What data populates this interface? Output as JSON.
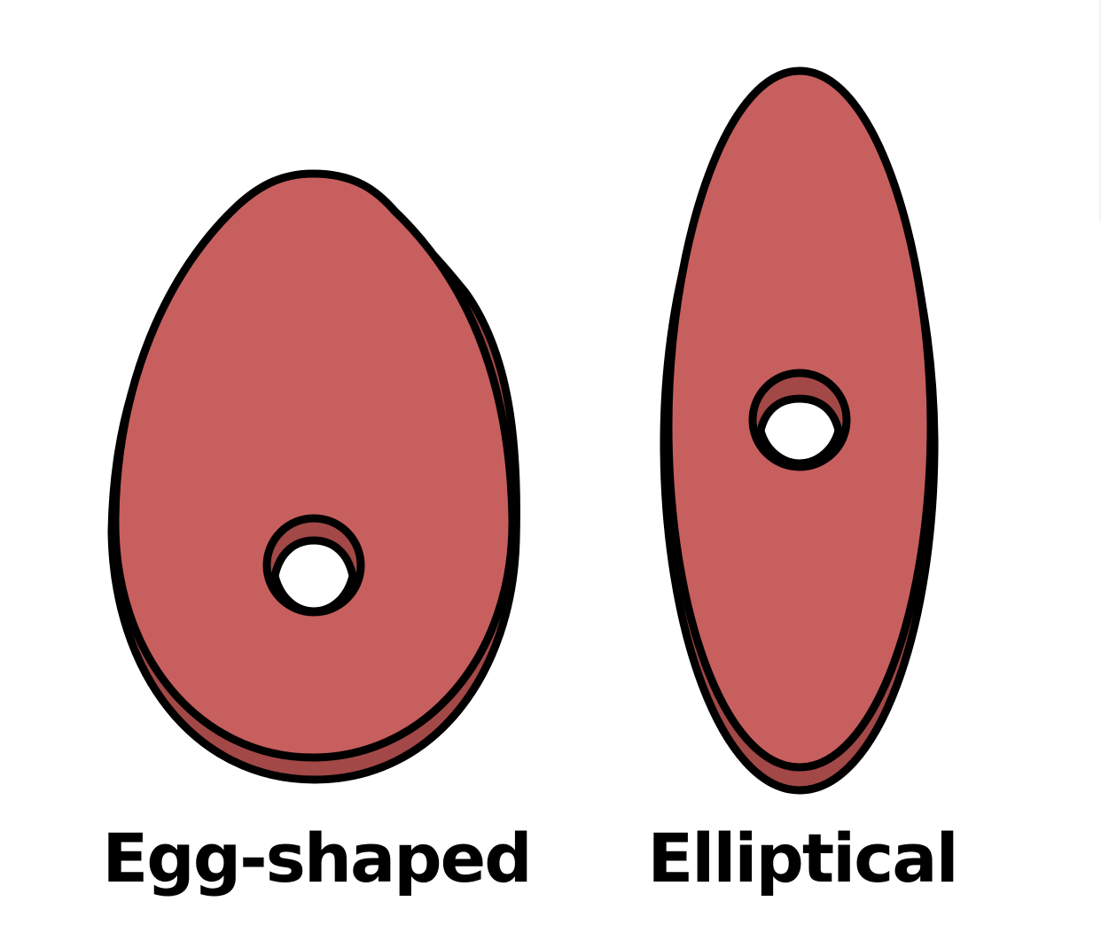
{
  "colors": {
    "fill": "#c75f5e",
    "shadow": "#a24847",
    "outline": "#000000",
    "hole": "#ffffff",
    "background": "#ffffff"
  },
  "shapes": [
    {
      "id": "egg",
      "label": "Egg-shaped",
      "icon": "egg-shaped-bead-icon"
    },
    {
      "id": "ellipse",
      "label": "Elliptical",
      "icon": "elliptical-bead-icon"
    }
  ]
}
